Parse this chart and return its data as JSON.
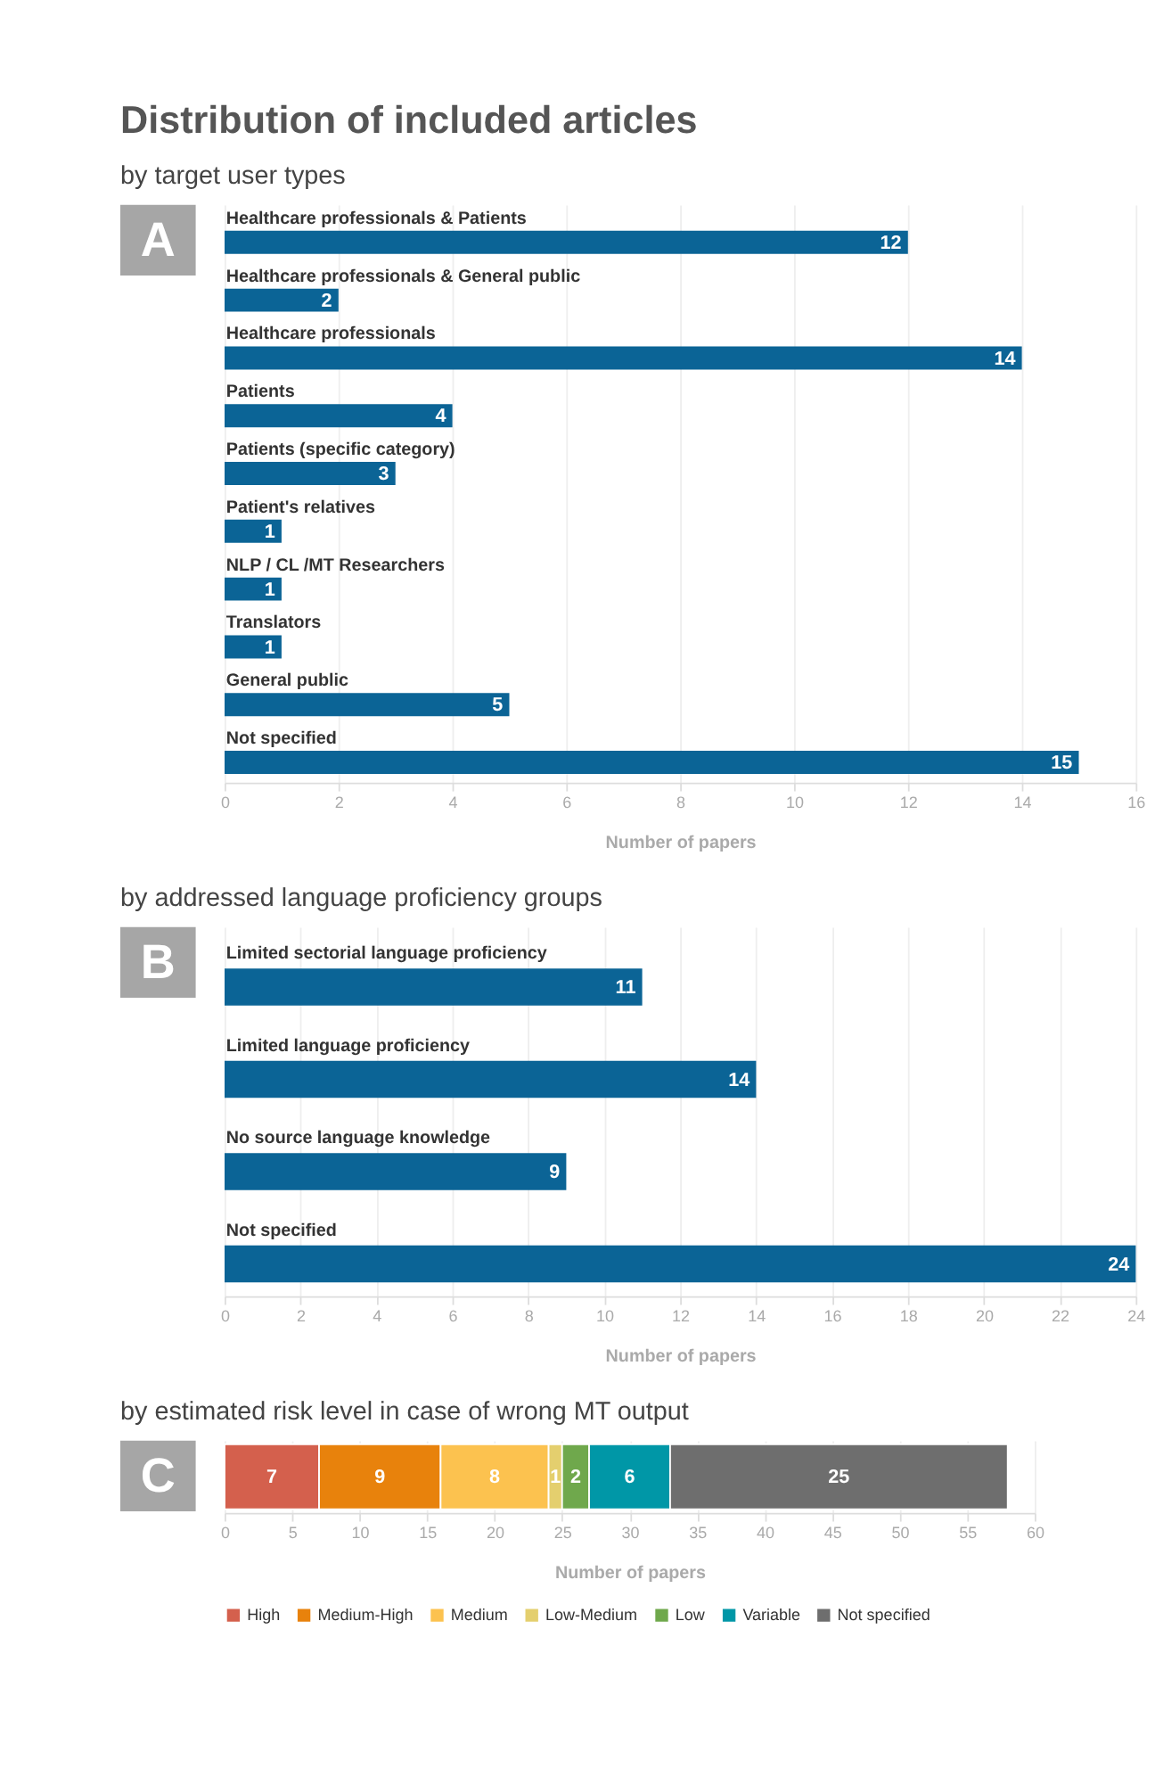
{
  "chart_data": [
    {
      "type": "bar",
      "orientation": "horizontal",
      "title": "Distribution of included articles",
      "subtitle": "by target user types",
      "annotations": [
        "A"
      ],
      "xlabel": "Number of papers",
      "categories": [
        "Healthcare professionals & Patients",
        "Healthcare professionals & General public",
        "Healthcare professionals",
        "Patients",
        "Patients (specific category)",
        "Patient's relatives",
        "NLP / CL /MT Researchers",
        "Translators",
        "General public",
        "Not specified"
      ],
      "values": [
        12,
        2,
        14,
        4,
        3,
        1,
        1,
        1,
        5,
        15
      ],
      "color": "#0b6496",
      "xlim": [
        0,
        16
      ],
      "xticks": [
        0,
        2,
        4,
        6,
        8,
        10,
        12,
        14,
        16
      ],
      "grid": "x",
      "data_labels": true
    },
    {
      "type": "bar",
      "orientation": "horizontal",
      "subtitle": "by addressed language proficiency groups",
      "annotations": [
        "B"
      ],
      "xlabel": "Number of papers",
      "categories": [
        "Limited sectorial language proficiency",
        "Limited language proficiency",
        "No source language knowledge",
        "Not specified"
      ],
      "values": [
        11,
        14,
        9,
        24
      ],
      "color": "#0b6496",
      "xlim": [
        0,
        24
      ],
      "xticks": [
        0,
        2,
        4,
        6,
        8,
        10,
        12,
        14,
        16,
        18,
        20,
        22,
        24
      ],
      "grid": "x",
      "data_labels": true
    },
    {
      "type": "bar",
      "orientation": "horizontal",
      "stacked": true,
      "subtitle": "by estimated risk level in case of wrong MT output",
      "annotations": [
        "C"
      ],
      "xlabel": "Number of papers",
      "categories": [
        null
      ],
      "series": [
        {
          "name": "High",
          "color": "#d4604d",
          "values": [
            7
          ]
        },
        {
          "name": "Medium-High",
          "color": "#e8820c",
          "values": [
            9
          ]
        },
        {
          "name": "Medium",
          "color": "#fcc24f",
          "values": [
            8
          ]
        },
        {
          "name": "Low-Medium",
          "color": "#e4cf6e",
          "values": [
            1
          ]
        },
        {
          "name": "Low",
          "color": "#6fa84c",
          "values": [
            2
          ]
        },
        {
          "name": "Variable",
          "color": "#0097a7",
          "values": [
            6
          ]
        },
        {
          "name": "Not specified",
          "color": "#6e6e6e",
          "values": [
            25
          ]
        }
      ],
      "xlim": [
        0,
        60
      ],
      "xticks": [
        0,
        5,
        10,
        15,
        20,
        25,
        30,
        35,
        40,
        45,
        50,
        55,
        60
      ],
      "grid": "x",
      "data_labels": true,
      "legend": "bottom"
    }
  ]
}
